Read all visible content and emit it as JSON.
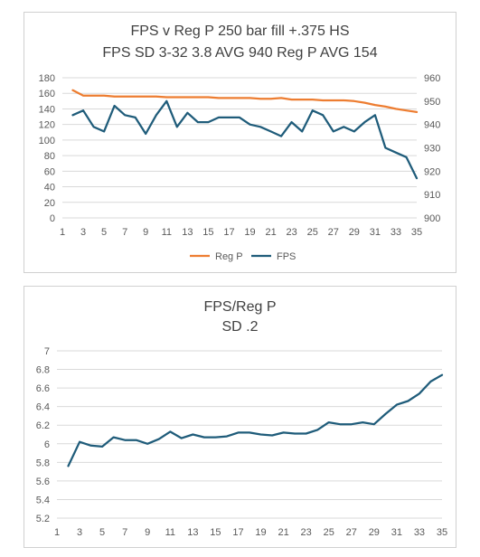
{
  "chart_data": [
    {
      "type": "line",
      "title_lines": [
        "FPS v Reg P 250 bar fill +.375 HS",
        "FPS SD 3-32 3.8 AVG 940 Reg P AVG 154"
      ],
      "x": [
        2,
        3,
        4,
        5,
        6,
        7,
        8,
        9,
        10,
        11,
        12,
        13,
        14,
        15,
        16,
        17,
        18,
        19,
        20,
        21,
        22,
        23,
        24,
        25,
        26,
        27,
        28,
        29,
        30,
        31,
        32,
        33,
        34,
        35
      ],
      "x_ticks": [
        1,
        3,
        5,
        7,
        9,
        11,
        13,
        15,
        17,
        19,
        21,
        23,
        25,
        27,
        29,
        31,
        33,
        35
      ],
      "xlim": [
        1,
        35
      ],
      "y_left": {
        "lim": [
          0,
          180
        ],
        "ticks": [
          0,
          20,
          40,
          60,
          80,
          100,
          120,
          140,
          160,
          180
        ]
      },
      "y_right": {
        "lim": [
          900,
          960
        ],
        "ticks": [
          900,
          910,
          920,
          930,
          940,
          950,
          960
        ]
      },
      "grid": true,
      "legend": "bottom",
      "series": [
        {
          "name": "Reg P",
          "axis": "left",
          "color": "#ED7D31",
          "values": [
            164,
            157,
            157,
            157,
            156,
            156,
            156,
            156,
            156,
            155,
            155,
            155,
            155,
            155,
            154,
            154,
            154,
            154,
            153,
            153,
            154,
            152,
            152,
            152,
            151,
            151,
            151,
            150,
            148,
            145,
            143,
            140,
            138,
            136
          ]
        },
        {
          "name": "FPS",
          "axis": "right",
          "color": "#1F5C7A",
          "values": [
            944,
            946,
            939,
            937,
            948,
            944,
            943,
            936,
            944,
            950,
            939,
            945,
            941,
            941,
            943,
            943,
            943,
            940,
            939,
            937,
            935,
            941,
            937,
            946,
            944,
            937,
            939,
            937,
            941,
            944,
            930,
            928,
            926,
            917
          ]
        }
      ]
    },
    {
      "type": "line",
      "title_lines": [
        "FPS/Reg P",
        "SD .2"
      ],
      "x": [
        2,
        3,
        4,
        5,
        6,
        7,
        8,
        9,
        10,
        11,
        12,
        13,
        14,
        15,
        16,
        17,
        18,
        19,
        20,
        21,
        22,
        23,
        24,
        25,
        26,
        27,
        28,
        29,
        30,
        31,
        32,
        33,
        34,
        35
      ],
      "x_ticks": [
        1,
        3,
        5,
        7,
        9,
        11,
        13,
        15,
        17,
        19,
        21,
        23,
        25,
        27,
        29,
        31,
        33,
        35
      ],
      "xlim": [
        1,
        35
      ],
      "y_left": {
        "lim": [
          5.2,
          7
        ],
        "ticks": [
          5.2,
          5.4,
          5.6,
          5.8,
          6,
          6.2,
          6.4,
          6.6,
          6.8,
          7
        ]
      },
      "grid": true,
      "series": [
        {
          "color": "#1F5C7A",
          "values": [
            5.76,
            6.02,
            5.98,
            5.97,
            6.07,
            6.04,
            6.04,
            6.0,
            6.05,
            6.13,
            6.06,
            6.1,
            6.07,
            6.07,
            6.08,
            6.12,
            6.12,
            6.1,
            6.09,
            6.12,
            6.11,
            6.11,
            6.15,
            6.23,
            6.21,
            6.21,
            6.23,
            6.21,
            6.32,
            6.42,
            6.46,
            6.54,
            6.67,
            6.74
          ]
        }
      ]
    }
  ]
}
